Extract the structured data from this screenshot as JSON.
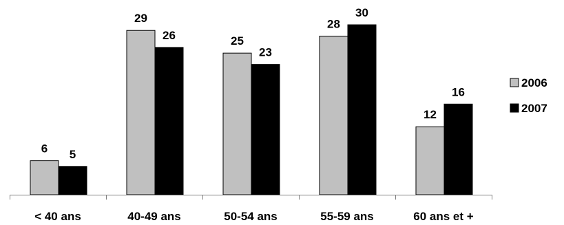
{
  "chart_data": {
    "type": "bar",
    "categories": [
      "< 40 ans",
      "40-49 ans",
      "50-54 ans",
      "55-59 ans",
      "60 ans et +"
    ],
    "series": [
      {
        "name": "2006",
        "values": [
          6,
          29,
          25,
          28,
          12
        ],
        "color": "#c0c0c0"
      },
      {
        "name": "2007",
        "values": [
          5,
          26,
          23,
          30,
          16
        ],
        "color": "#000000"
      }
    ],
    "title": "",
    "xlabel": "",
    "ylabel": "",
    "ylim": [
      0,
      30
    ],
    "grid": false,
    "legend": "right",
    "data_labels": true
  }
}
